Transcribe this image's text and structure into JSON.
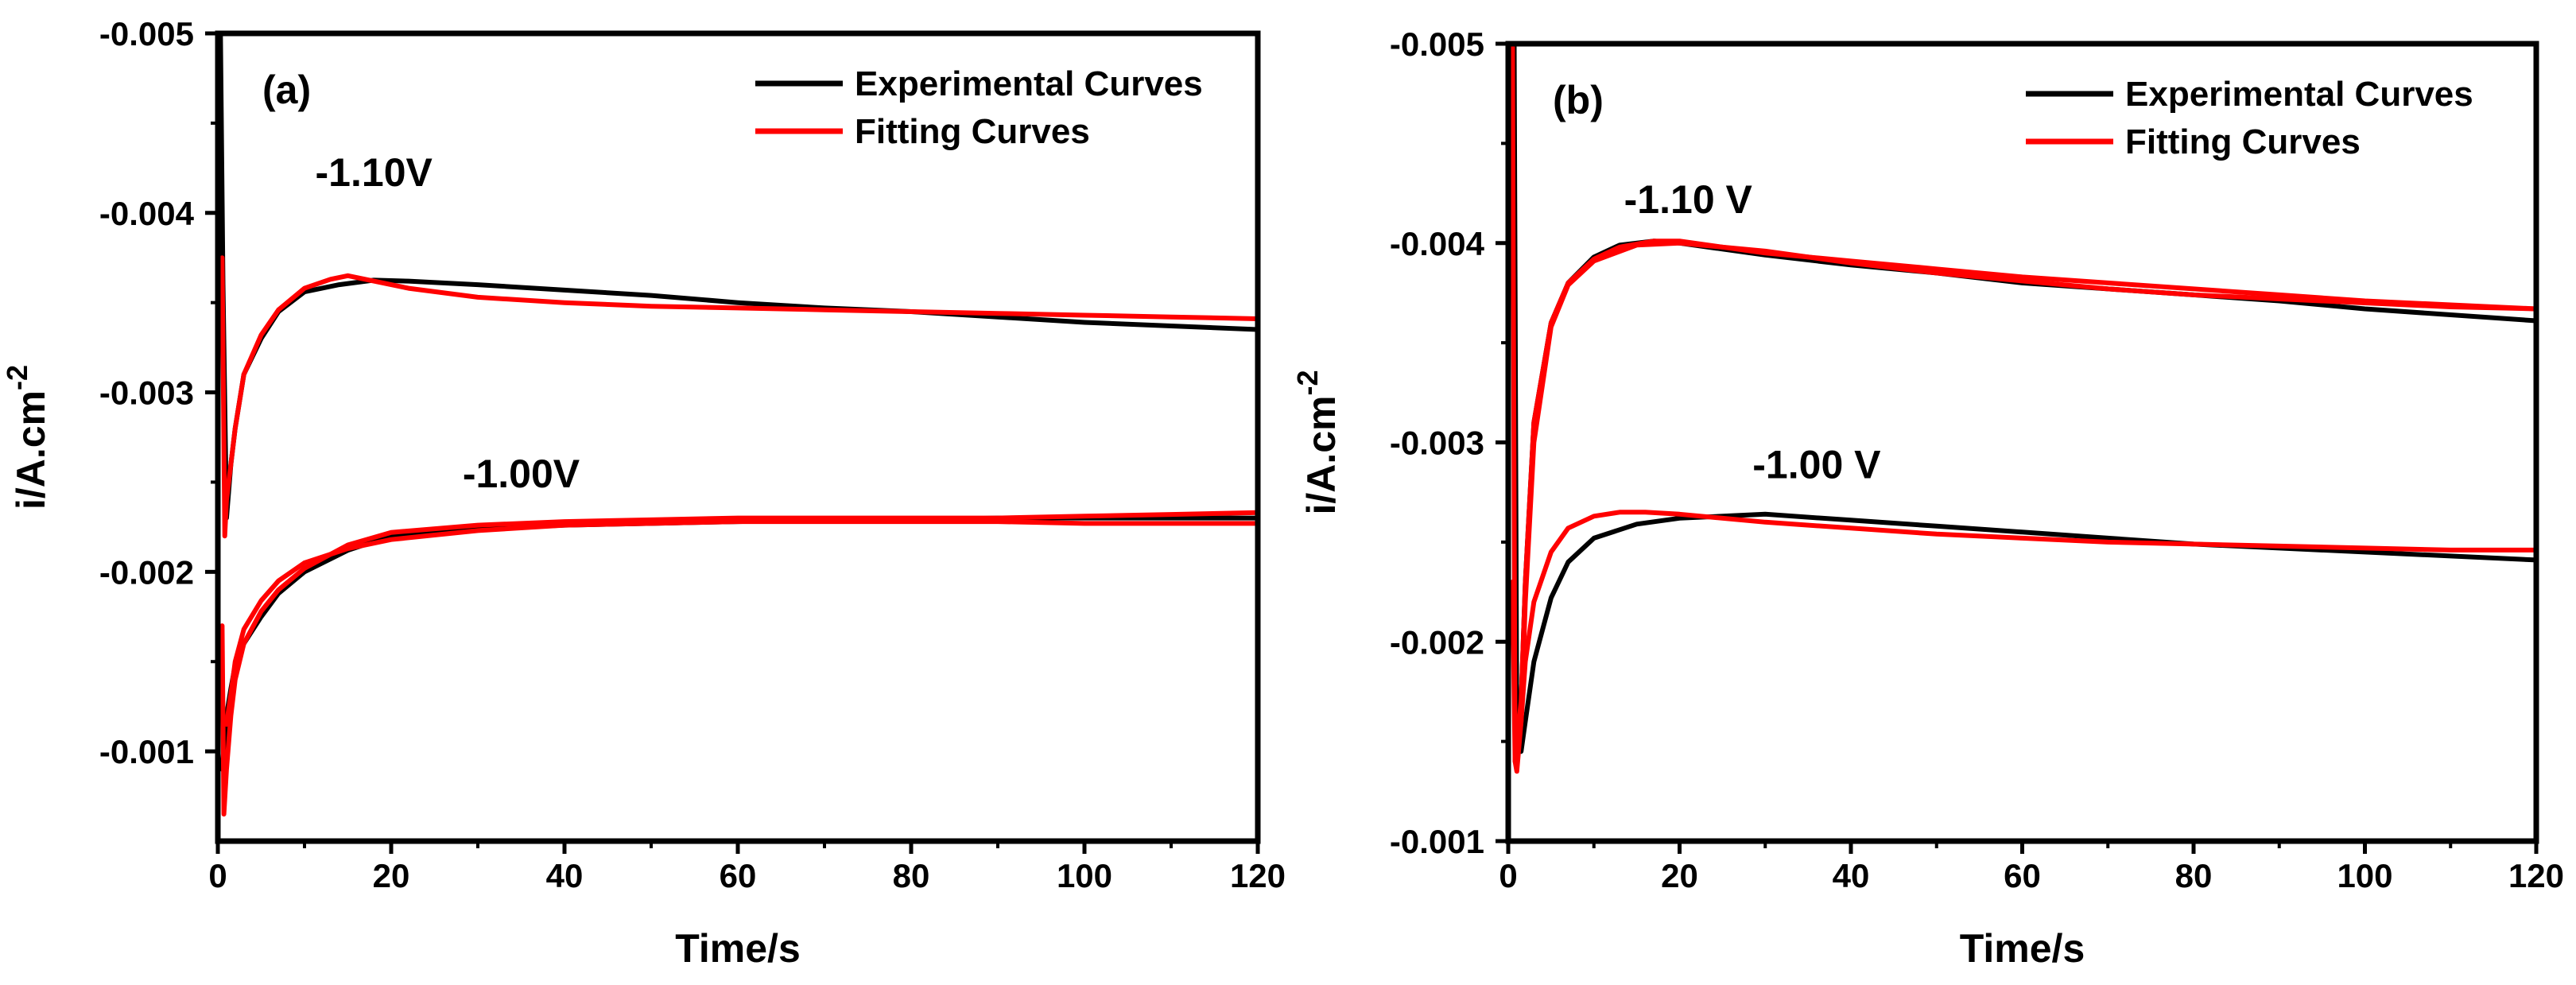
{
  "chart_data": [
    {
      "type": "line",
      "panel_label": "(a)",
      "xlabel": "Time/s",
      "ylabel_base": "i/A.cm",
      "ylabel_sup": "-2",
      "xlim": [
        0,
        120
      ],
      "ylim": [
        -0.0005,
        -0.005
      ],
      "xticks": [
        0,
        20,
        40,
        60,
        80,
        100,
        120
      ],
      "xtick_labels": [
        "0",
        "20",
        "40",
        "60",
        "80",
        "100",
        "120"
      ],
      "yticks": [
        -0.001,
        -0.002,
        -0.003,
        -0.004,
        -0.005
      ],
      "ytick_labels": [
        "-0.001",
        "-0.002",
        "-0.003",
        "-0.004",
        "-0.005"
      ],
      "legend_position": "top-right",
      "legend": [
        {
          "label": "Experimental Curves",
          "color": "#000000"
        },
        {
          "label": "Fitting Curves",
          "color": "#ff0000"
        }
      ],
      "annotations": [
        {
          "text": "-1.10V",
          "x": 18,
          "y": -0.00415
        },
        {
          "text": "-1.00V",
          "x": 35,
          "y": -0.00247
        }
      ],
      "series": [
        {
          "name": "Experimental Curves",
          "color": "#000000",
          "x": [
            0,
            0.3,
            0.6,
            1,
            1.5,
            2,
            3,
            5,
            7,
            10,
            14,
            18,
            22,
            30,
            40,
            50,
            60,
            70,
            80,
            90,
            100,
            110,
            120
          ],
          "y": [
            -0.005,
            -0.005,
            -0.0036,
            -0.0023,
            -0.0026,
            -0.0028,
            -0.0031,
            -0.0033,
            -0.00345,
            -0.00356,
            -0.0036,
            -0.003625,
            -0.00362,
            -0.0036,
            -0.00357,
            -0.00354,
            -0.0035,
            -0.00347,
            -0.00345,
            -0.00342,
            -0.00339,
            -0.00337,
            -0.00335
          ]
        },
        {
          "name": "Fitting Curves",
          "color": "#ff0000",
          "x": [
            0.5,
            0.8,
            1,
            1.5,
            2,
            3,
            5,
            7,
            10,
            13,
            15,
            18,
            22,
            30,
            40,
            50,
            60,
            70,
            80,
            90,
            100,
            110,
            120
          ],
          "y": [
            -0.00375,
            -0.0022,
            -0.0024,
            -0.0026,
            -0.0028,
            -0.0031,
            -0.00332,
            -0.00346,
            -0.00358,
            -0.00363,
            -0.00365,
            -0.00362,
            -0.00358,
            -0.00353,
            -0.0035,
            -0.00348,
            -0.00347,
            -0.00346,
            -0.00345,
            -0.00344,
            -0.00343,
            -0.00342,
            -0.00341
          ]
        },
        {
          "name": "Experimental Curves",
          "color": "#000000",
          "x": [
            0.5,
            1,
            1.5,
            2,
            3,
            5,
            7,
            10,
            15,
            20,
            30,
            40,
            50,
            60,
            70,
            80,
            90,
            100,
            110,
            120
          ],
          "y": [
            -0.0009,
            -0.0012,
            -0.00135,
            -0.00148,
            -0.0016,
            -0.00175,
            -0.00188,
            -0.002,
            -0.00212,
            -0.0022,
            -0.00224,
            -0.00226,
            -0.00227,
            -0.00228,
            -0.00229,
            -0.00229,
            -0.0023,
            -0.0023,
            -0.0023,
            -0.0023
          ]
        },
        {
          "name": "Fitting Curves",
          "color": "#ff0000",
          "x": [
            0.5,
            0.7,
            1,
            1.5,
            2,
            3,
            5,
            7,
            10,
            15,
            20,
            30,
            40,
            50,
            60,
            70,
            80,
            90,
            100,
            110,
            120
          ],
          "y": [
            -0.0017,
            -0.00065,
            -0.0009,
            -0.0012,
            -0.0014,
            -0.0016,
            -0.00178,
            -0.0019,
            -0.00202,
            -0.00215,
            -0.00222,
            -0.00226,
            -0.00228,
            -0.00229,
            -0.0023,
            -0.0023,
            -0.0023,
            -0.0023,
            -0.00231,
            -0.00232,
            -0.00233
          ]
        },
        {
          "name": "Fitting Curves",
          "color": "#ff0000",
          "x": [
            1,
            1.5,
            2,
            3,
            5,
            7,
            10,
            15,
            20,
            30,
            40,
            50,
            60,
            70,
            80,
            90,
            100,
            110,
            120
          ],
          "y": [
            -0.00115,
            -0.00132,
            -0.0015,
            -0.00168,
            -0.00184,
            -0.00195,
            -0.00205,
            -0.00213,
            -0.00218,
            -0.00223,
            -0.00226,
            -0.00227,
            -0.00228,
            -0.00228,
            -0.00228,
            -0.00228,
            -0.00227,
            -0.00227,
            -0.00227
          ]
        }
      ]
    },
    {
      "type": "line",
      "panel_label": "(b)",
      "xlabel": "Time/s",
      "ylabel_base": "i/A.cm",
      "ylabel_sup": "-2",
      "xlim": [
        0,
        120
      ],
      "ylim": [
        -0.001,
        -0.005
      ],
      "xticks": [
        0,
        20,
        40,
        60,
        80,
        100,
        120
      ],
      "xtick_labels": [
        "0",
        "20",
        "40",
        "60",
        "80",
        "100",
        "120"
      ],
      "yticks": [
        -0.001,
        -0.002,
        -0.003,
        -0.004,
        -0.005
      ],
      "ytick_labels": [
        "-0.001",
        "-0.002",
        "-0.003",
        "-0.004",
        "-0.005"
      ],
      "legend_position": "top-right",
      "legend": [
        {
          "label": "Experimental Curves",
          "color": "#000000"
        },
        {
          "label": "Fitting Curves",
          "color": "#ff0000"
        }
      ],
      "annotations": [
        {
          "text": "-1.10 V",
          "x": 21,
          "y": -0.00415
        },
        {
          "text": "-1.00 V",
          "x": 36,
          "y": -0.00282
        }
      ],
      "series": [
        {
          "name": "Experimental Curves",
          "color": "#000000",
          "x": [
            0.5,
            0.8,
            1,
            1.5,
            2,
            3,
            5,
            7,
            10,
            15,
            20,
            30,
            40,
            50,
            60,
            70,
            80,
            90,
            100,
            110,
            120
          ],
          "y": [
            -0.0022,
            -0.0018,
            -0.0015,
            -0.00145,
            -0.0016,
            -0.0019,
            -0.00222,
            -0.0024,
            -0.00252,
            -0.00259,
            -0.00262,
            -0.00264,
            -0.00261,
            -0.00258,
            -0.00255,
            -0.00252,
            -0.00249,
            -0.00247,
            -0.00245,
            -0.00243,
            -0.00241
          ]
        },
        {
          "name": "Fitting Curves",
          "color": "#ff0000",
          "x": [
            0.5,
            0.8,
            1,
            1.5,
            2,
            3,
            5,
            7,
            10,
            13,
            16,
            20,
            30,
            40,
            50,
            60,
            70,
            80,
            90,
            100,
            110,
            120
          ],
          "y": [
            -0.0023,
            -0.0014,
            -0.00135,
            -0.0016,
            -0.0019,
            -0.0022,
            -0.00245,
            -0.00257,
            -0.00263,
            -0.00265,
            -0.00265,
            -0.00264,
            -0.0026,
            -0.00257,
            -0.00254,
            -0.00252,
            -0.0025,
            -0.00249,
            -0.00248,
            -0.00247,
            -0.00246,
            -0.00246
          ]
        },
        {
          "name": "Experimental Curves",
          "color": "#000000",
          "x": [
            0.5,
            0.7,
            1,
            1.5,
            2,
            3,
            5,
            7,
            10,
            13,
            17,
            20,
            25,
            30,
            40,
            50,
            60,
            70,
            80,
            90,
            100,
            110,
            120
          ],
          "y": [
            -0.005,
            -0.005,
            -0.0015,
            -0.0017,
            -0.0023,
            -0.0031,
            -0.0036,
            -0.0038,
            -0.00393,
            -0.00399,
            -0.00401,
            -0.004,
            -0.00397,
            -0.00394,
            -0.00389,
            -0.00385,
            -0.0038,
            -0.00377,
            -0.00374,
            -0.00371,
            -0.00367,
            -0.00364,
            -0.00361
          ]
        },
        {
          "name": "Fitting Curves",
          "color": "#ff0000",
          "x": [
            0.5,
            0.8,
            1,
            1.5,
            2,
            3,
            5,
            7,
            10,
            13,
            17,
            20,
            25,
            30,
            40,
            50,
            60,
            70,
            80,
            90,
            100,
            110,
            120
          ],
          "y": [
            -0.005,
            -0.0014,
            -0.0015,
            -0.0017,
            -0.0023,
            -0.0031,
            -0.0036,
            -0.0038,
            -0.00392,
            -0.00398,
            -0.00401,
            -0.00401,
            -0.00398,
            -0.00395,
            -0.00391,
            -0.00387,
            -0.00383,
            -0.0038,
            -0.00377,
            -0.00374,
            -0.00371,
            -0.00369,
            -0.00367
          ]
        },
        {
          "name": "Fitting Curves",
          "color": "#ff0000",
          "x": [
            1,
            1.5,
            2,
            3,
            5,
            7,
            10,
            15,
            20,
            30,
            40,
            50,
            60,
            70,
            80,
            90,
            100,
            110,
            120
          ],
          "y": [
            -0.0014,
            -0.0016,
            -0.0022,
            -0.003,
            -0.00358,
            -0.00379,
            -0.00391,
            -0.00399,
            -0.004,
            -0.00396,
            -0.0039,
            -0.00385,
            -0.00381,
            -0.00377,
            -0.00374,
            -0.00372,
            -0.0037,
            -0.00368,
            -0.00367
          ]
        }
      ]
    }
  ]
}
